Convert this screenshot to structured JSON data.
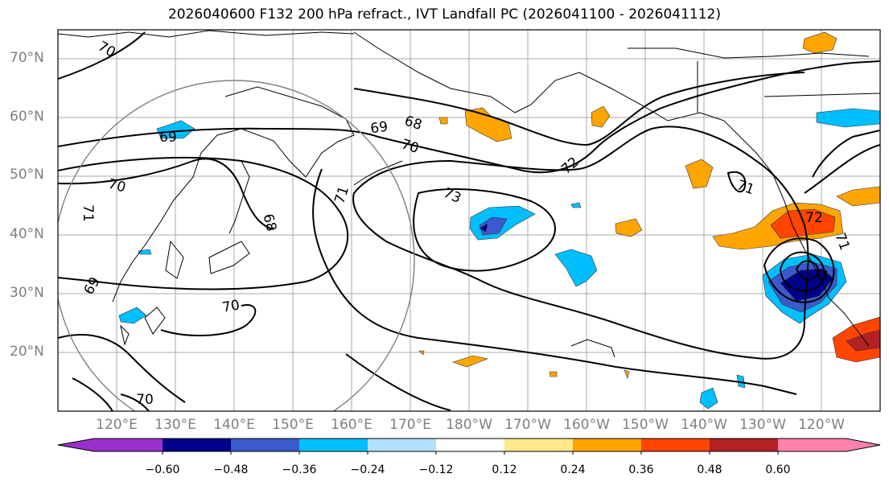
{
  "title": "2026040600 F132 200 hPa refract., IVT Landfall PC (2026041100 - 2026041112)",
  "lat_labels": [
    "70°N",
    "60°N",
    "50°N",
    "40°N",
    "30°N",
    "20°N"
  ],
  "lon_labels": [
    "120°E",
    "130°E",
    "140°E",
    "150°E",
    "160°E",
    "170°E",
    "180°W",
    "170°W",
    "160°W",
    "150°W",
    "140°W",
    "130°W",
    "120°W"
  ],
  "contour_labels": [
    "70",
    "69",
    "68",
    "70",
    "72",
    "73",
    "71",
    "71",
    "71",
    "69",
    "70",
    "68",
    "71",
    "69",
    "70",
    "70",
    "72",
    "71"
  ],
  "colorbar": {
    "colors": [
      "#9932cc",
      "#00008b",
      "#3a5bcc",
      "#00bfff",
      "#b0e2ff",
      "#ffffff",
      "#ffe98a",
      "#ffa500",
      "#ff4500",
      "#b22222",
      "#ff82ab"
    ],
    "tick_labels": [
      "−0.60",
      "−0.48",
      "−0.36",
      "−0.24",
      "−0.12",
      "0.12",
      "0.24",
      "0.36",
      "0.48",
      "0.60"
    ]
  }
}
